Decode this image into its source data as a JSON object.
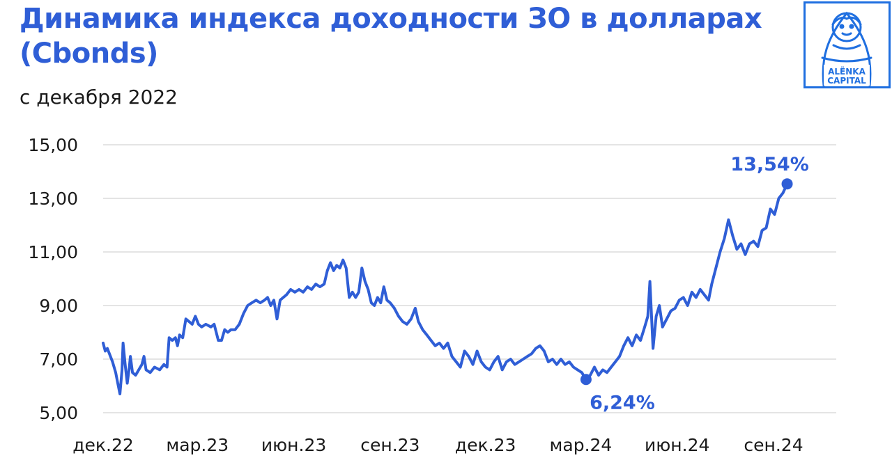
{
  "header": {
    "title_line1": "Динамика индекса доходности ЗО в долларах",
    "title_line2": "(Cbonds)",
    "subtitle": "с декабря 2022"
  },
  "logo": {
    "line1": "ALЁNKA",
    "line2": "CAPITAL",
    "color": "#1f6fe0"
  },
  "colors": {
    "accent": "#2f5ed6",
    "grid": "#dcdcdc",
    "text": "#1a1a1a"
  },
  "chart_data": {
    "type": "line",
    "title": "Динамика индекса доходности ЗО в долларах (Cbonds)",
    "subtitle": "с декабря 2022",
    "xlabel": "",
    "ylabel": "",
    "ylim": [
      5,
      15
    ],
    "yticks": [
      "15,00",
      "13,00",
      "11,00",
      "9,00",
      "7,00",
      "5,00"
    ],
    "ytick_values": [
      15,
      13,
      11,
      9,
      7,
      5
    ],
    "xticks": [
      "дек.22",
      "мар.23",
      "июн.23",
      "сен.23",
      "дек.23",
      "мар.24",
      "июн.24",
      "сен.24"
    ],
    "xtick_dates": [
      "2022-12-01",
      "2023-03-01",
      "2023-06-01",
      "2023-09-01",
      "2023-12-01",
      "2024-03-01",
      "2024-06-01",
      "2024-09-01"
    ],
    "grid": true,
    "legend": "none",
    "series": [
      {
        "color": "#2f5ed6",
        "points": [
          [
            "2022-12-01",
            7.6
          ],
          [
            "2022-12-03",
            7.3
          ],
          [
            "2022-12-05",
            7.4
          ],
          [
            "2022-12-08",
            7.1
          ],
          [
            "2022-12-10",
            6.9
          ],
          [
            "2022-12-13",
            6.5
          ],
          [
            "2022-12-15",
            6.1
          ],
          [
            "2022-12-17",
            5.7
          ],
          [
            "2022-12-19",
            6.6
          ],
          [
            "2022-12-20",
            7.6
          ],
          [
            "2022-12-22",
            6.8
          ],
          [
            "2022-12-24",
            6.1
          ],
          [
            "2022-12-26",
            6.7
          ],
          [
            "2022-12-27",
            7.1
          ],
          [
            "2022-12-29",
            6.5
          ],
          [
            "2023-01-01",
            6.4
          ],
          [
            "2023-01-04",
            6.6
          ],
          [
            "2023-01-07",
            6.8
          ],
          [
            "2023-01-09",
            7.1
          ],
          [
            "2023-01-11",
            6.6
          ],
          [
            "2023-01-15",
            6.5
          ],
          [
            "2023-01-19",
            6.7
          ],
          [
            "2023-01-24",
            6.6
          ],
          [
            "2023-01-28",
            6.8
          ],
          [
            "2023-01-31",
            6.7
          ],
          [
            "2023-02-02",
            7.8
          ],
          [
            "2023-02-05",
            7.7
          ],
          [
            "2023-02-08",
            7.8
          ],
          [
            "2023-02-10",
            7.5
          ],
          [
            "2023-02-12",
            7.9
          ],
          [
            "2023-02-15",
            7.8
          ],
          [
            "2023-02-18",
            8.5
          ],
          [
            "2023-02-21",
            8.4
          ],
          [
            "2023-02-24",
            8.3
          ],
          [
            "2023-02-27",
            8.6
          ],
          [
            "2023-03-02",
            8.3
          ],
          [
            "2023-03-05",
            8.2
          ],
          [
            "2023-03-09",
            8.3
          ],
          [
            "2023-03-14",
            8.2
          ],
          [
            "2023-03-17",
            8.3
          ],
          [
            "2023-03-21",
            7.7
          ],
          [
            "2023-03-24",
            7.7
          ],
          [
            "2023-03-27",
            8.1
          ],
          [
            "2023-03-30",
            8.0
          ],
          [
            "2023-04-02",
            8.1
          ],
          [
            "2023-04-06",
            8.1
          ],
          [
            "2023-04-10",
            8.3
          ],
          [
            "2023-04-14",
            8.7
          ],
          [
            "2023-04-18",
            9.0
          ],
          [
            "2023-04-22",
            9.1
          ],
          [
            "2023-04-26",
            9.2
          ],
          [
            "2023-04-30",
            9.1
          ],
          [
            "2023-05-04",
            9.2
          ],
          [
            "2023-05-07",
            9.3
          ],
          [
            "2023-05-10",
            9.0
          ],
          [
            "2023-05-13",
            9.2
          ],
          [
            "2023-05-16",
            8.5
          ],
          [
            "2023-05-19",
            9.2
          ],
          [
            "2023-05-22",
            9.3
          ],
          [
            "2023-05-25",
            9.4
          ],
          [
            "2023-05-29",
            9.6
          ],
          [
            "2023-06-02",
            9.5
          ],
          [
            "2023-06-06",
            9.6
          ],
          [
            "2023-06-10",
            9.5
          ],
          [
            "2023-06-14",
            9.7
          ],
          [
            "2023-06-18",
            9.6
          ],
          [
            "2023-06-22",
            9.8
          ],
          [
            "2023-06-26",
            9.7
          ],
          [
            "2023-06-30",
            9.8
          ],
          [
            "2023-07-03",
            10.3
          ],
          [
            "2023-07-06",
            10.6
          ],
          [
            "2023-07-09",
            10.3
          ],
          [
            "2023-07-12",
            10.5
          ],
          [
            "2023-07-15",
            10.4
          ],
          [
            "2023-07-18",
            10.7
          ],
          [
            "2023-07-21",
            10.4
          ],
          [
            "2023-07-24",
            9.3
          ],
          [
            "2023-07-27",
            9.5
          ],
          [
            "2023-07-30",
            9.3
          ],
          [
            "2023-08-02",
            9.5
          ],
          [
            "2023-08-05",
            10.4
          ],
          [
            "2023-08-08",
            9.9
          ],
          [
            "2023-08-11",
            9.6
          ],
          [
            "2023-08-14",
            9.1
          ],
          [
            "2023-08-17",
            9.0
          ],
          [
            "2023-08-20",
            9.3
          ],
          [
            "2023-08-23",
            9.1
          ],
          [
            "2023-08-26",
            9.7
          ],
          [
            "2023-08-29",
            9.2
          ],
          [
            "2023-09-01",
            9.1
          ],
          [
            "2023-09-05",
            8.9
          ],
          [
            "2023-09-09",
            8.6
          ],
          [
            "2023-09-13",
            8.4
          ],
          [
            "2023-09-17",
            8.3
          ],
          [
            "2023-09-21",
            8.5
          ],
          [
            "2023-09-25",
            8.9
          ],
          [
            "2023-09-28",
            8.4
          ],
          [
            "2023-10-02",
            8.1
          ],
          [
            "2023-10-06",
            7.9
          ],
          [
            "2023-10-10",
            7.7
          ],
          [
            "2023-10-14",
            7.5
          ],
          [
            "2023-10-18",
            7.6
          ],
          [
            "2023-10-22",
            7.4
          ],
          [
            "2023-10-26",
            7.6
          ],
          [
            "2023-10-30",
            7.1
          ],
          [
            "2023-11-03",
            6.9
          ],
          [
            "2023-11-07",
            6.7
          ],
          [
            "2023-11-11",
            7.3
          ],
          [
            "2023-11-15",
            7.1
          ],
          [
            "2023-11-19",
            6.8
          ],
          [
            "2023-11-23",
            7.3
          ],
          [
            "2023-11-27",
            6.9
          ],
          [
            "2023-12-01",
            6.7
          ],
          [
            "2023-12-05",
            6.6
          ],
          [
            "2023-12-09",
            6.9
          ],
          [
            "2023-12-13",
            7.1
          ],
          [
            "2023-12-17",
            6.6
          ],
          [
            "2023-12-21",
            6.9
          ],
          [
            "2023-12-25",
            7.0
          ],
          [
            "2023-12-29",
            6.8
          ],
          [
            "2024-01-02",
            6.9
          ],
          [
            "2024-01-06",
            7.0
          ],
          [
            "2024-01-10",
            7.1
          ],
          [
            "2024-01-14",
            7.2
          ],
          [
            "2024-01-18",
            7.4
          ],
          [
            "2024-01-22",
            7.5
          ],
          [
            "2024-01-26",
            7.3
          ],
          [
            "2024-01-30",
            6.9
          ],
          [
            "2024-02-03",
            7.0
          ],
          [
            "2024-02-07",
            6.8
          ],
          [
            "2024-02-11",
            7.0
          ],
          [
            "2024-02-15",
            6.8
          ],
          [
            "2024-02-19",
            6.9
          ],
          [
            "2024-02-23",
            6.7
          ],
          [
            "2024-02-27",
            6.6
          ],
          [
            "2024-03-02",
            6.5
          ],
          [
            "2024-03-06",
            6.24
          ],
          [
            "2024-03-10",
            6.4
          ],
          [
            "2024-03-14",
            6.7
          ],
          [
            "2024-03-18",
            6.4
          ],
          [
            "2024-03-22",
            6.6
          ],
          [
            "2024-03-26",
            6.5
          ],
          [
            "2024-03-30",
            6.7
          ],
          [
            "2024-04-03",
            6.9
          ],
          [
            "2024-04-07",
            7.1
          ],
          [
            "2024-04-11",
            7.5
          ],
          [
            "2024-04-15",
            7.8
          ],
          [
            "2024-04-19",
            7.5
          ],
          [
            "2024-04-23",
            7.9
          ],
          [
            "2024-04-27",
            7.7
          ],
          [
            "2024-05-01",
            8.2
          ],
          [
            "2024-05-04",
            8.6
          ],
          [
            "2024-05-06",
            9.9
          ],
          [
            "2024-05-09",
            7.4
          ],
          [
            "2024-05-12",
            8.6
          ],
          [
            "2024-05-15",
            9.0
          ],
          [
            "2024-05-18",
            8.2
          ],
          [
            "2024-05-22",
            8.5
          ],
          [
            "2024-05-26",
            8.8
          ],
          [
            "2024-05-30",
            8.9
          ],
          [
            "2024-06-03",
            9.2
          ],
          [
            "2024-06-07",
            9.3
          ],
          [
            "2024-06-11",
            9.0
          ],
          [
            "2024-06-15",
            9.5
          ],
          [
            "2024-06-19",
            9.3
          ],
          [
            "2024-06-23",
            9.6
          ],
          [
            "2024-06-27",
            9.4
          ],
          [
            "2024-07-01",
            9.2
          ],
          [
            "2024-07-04",
            9.8
          ],
          [
            "2024-07-08",
            10.4
          ],
          [
            "2024-07-12",
            11.0
          ],
          [
            "2024-07-16",
            11.5
          ],
          [
            "2024-07-20",
            12.2
          ],
          [
            "2024-07-24",
            11.6
          ],
          [
            "2024-07-28",
            11.1
          ],
          [
            "2024-08-01",
            11.3
          ],
          [
            "2024-08-05",
            10.9
          ],
          [
            "2024-08-09",
            11.3
          ],
          [
            "2024-08-13",
            11.4
          ],
          [
            "2024-08-17",
            11.2
          ],
          [
            "2024-08-21",
            11.8
          ],
          [
            "2024-08-25",
            11.9
          ],
          [
            "2024-08-29",
            12.6
          ],
          [
            "2024-09-02",
            12.4
          ],
          [
            "2024-09-06",
            13.0
          ],
          [
            "2024-09-10",
            13.2
          ],
          [
            "2024-09-14",
            13.54
          ]
        ]
      }
    ],
    "annotations": [
      {
        "text": "6,24%",
        "date": "2024-03-06",
        "value": 6.24,
        "position": "below"
      },
      {
        "text": "13,54%",
        "date": "2024-09-14",
        "value": 13.54,
        "position": "above"
      }
    ]
  }
}
